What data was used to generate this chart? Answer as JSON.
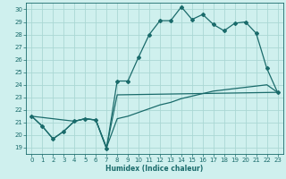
{
  "xlabel": "Humidex (Indice chaleur)",
  "bg_color": "#cff0ee",
  "grid_color": "#aad8d4",
  "line_color": "#1a6b6b",
  "xlim": [
    -0.5,
    23.5
  ],
  "ylim": [
    18.5,
    30.5
  ],
  "yticks": [
    19,
    20,
    21,
    22,
    23,
    24,
    25,
    26,
    27,
    28,
    29,
    30
  ],
  "xticks": [
    0,
    1,
    2,
    3,
    4,
    5,
    6,
    7,
    8,
    9,
    10,
    11,
    12,
    13,
    14,
    15,
    16,
    17,
    18,
    19,
    20,
    21,
    22,
    23
  ],
  "line1_x": [
    0,
    1,
    2,
    3,
    4,
    5,
    6,
    7,
    8,
    9,
    10,
    11,
    12,
    13,
    14,
    15,
    16,
    17,
    18,
    19,
    20,
    21,
    22,
    23
  ],
  "line1_y": [
    21.5,
    20.7,
    19.7,
    20.3,
    21.1,
    21.3,
    21.2,
    18.9,
    24.3,
    24.3,
    26.2,
    28.0,
    29.1,
    29.1,
    30.2,
    29.2,
    29.6,
    28.8,
    28.3,
    28.9,
    29.0,
    28.1,
    25.3,
    23.4
  ],
  "line2_x": [
    0,
    1,
    2,
    3,
    4,
    5,
    6,
    7,
    8,
    9,
    10,
    11,
    12,
    13,
    14,
    15,
    16,
    17,
    18,
    19,
    20,
    21,
    22,
    23
  ],
  "line2_y": [
    21.5,
    20.7,
    19.7,
    20.3,
    21.1,
    21.3,
    21.2,
    19.0,
    21.3,
    21.5,
    21.8,
    22.1,
    22.4,
    22.6,
    22.9,
    23.1,
    23.3,
    23.5,
    23.6,
    23.7,
    23.8,
    23.9,
    24.0,
    23.4
  ],
  "line3_x": [
    0,
    4,
    5,
    6,
    7,
    8,
    23
  ],
  "line3_y": [
    21.5,
    21.1,
    21.3,
    21.2,
    19.0,
    23.2,
    23.4
  ]
}
